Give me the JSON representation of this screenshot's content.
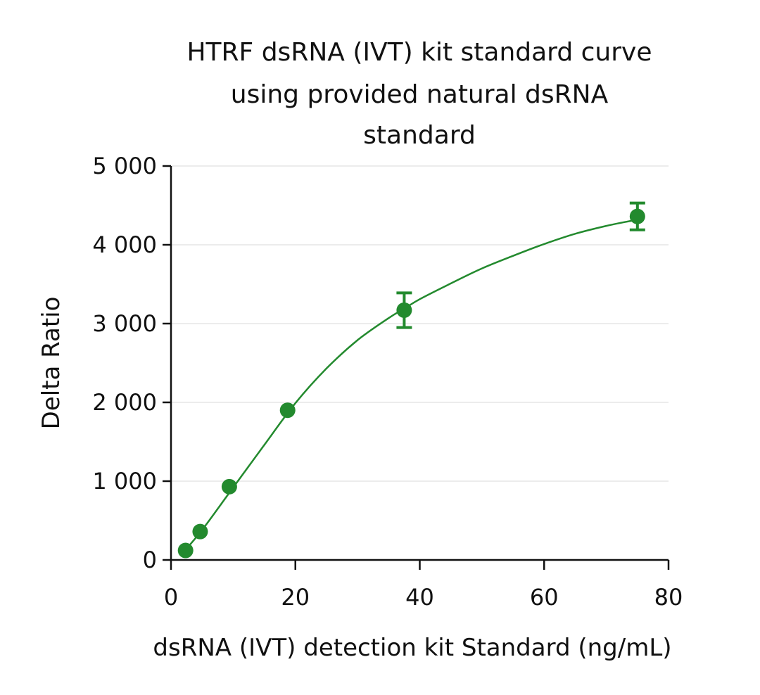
{
  "chart_data": {
    "type": "scatter",
    "title_lines": [
      "HTRF dsRNA (IVT) kit standard curve",
      "using provided natural dsRNA",
      "standard"
    ],
    "xlabel": "dsRNA (IVT) detection kit Standard (ng/mL)",
    "ylabel": "Delta Ratio",
    "xlim": [
      0,
      80
    ],
    "ylim": [
      0,
      5000
    ],
    "x_ticks": [
      0,
      20,
      40,
      60,
      80
    ],
    "x_tick_labels": [
      "0",
      "20",
      "40",
      "60",
      "80"
    ],
    "y_ticks": [
      0,
      1000,
      2000,
      3000,
      4000,
      5000
    ],
    "y_tick_labels": [
      "0",
      "1 000",
      "2 000",
      "3 000",
      "4 000",
      "5 000"
    ],
    "grid": "horizontal",
    "series": [
      {
        "points": [
          {
            "x": 2.34,
            "y": 120,
            "err": 0
          },
          {
            "x": 4.69,
            "y": 360,
            "err": 0
          },
          {
            "x": 9.38,
            "y": 930,
            "err": 0
          },
          {
            "x": 18.75,
            "y": 1900,
            "err": 0
          },
          {
            "x": 37.5,
            "y": 3170,
            "err": 220
          },
          {
            "x": 75,
            "y": 4360,
            "err": 170
          }
        ],
        "fit_curve": {
          "x": [
            2,
            5,
            10,
            15,
            20,
            25,
            30,
            35,
            37.5,
            40,
            45,
            50,
            55,
            60,
            65,
            70,
            75
          ],
          "y": [
            100,
            380,
            920,
            1460,
            1990,
            2430,
            2790,
            3070,
            3190,
            3310,
            3510,
            3700,
            3860,
            4010,
            4140,
            4240,
            4320
          ]
        }
      }
    ],
    "colors": {
      "series": "#238a2e"
    }
  }
}
